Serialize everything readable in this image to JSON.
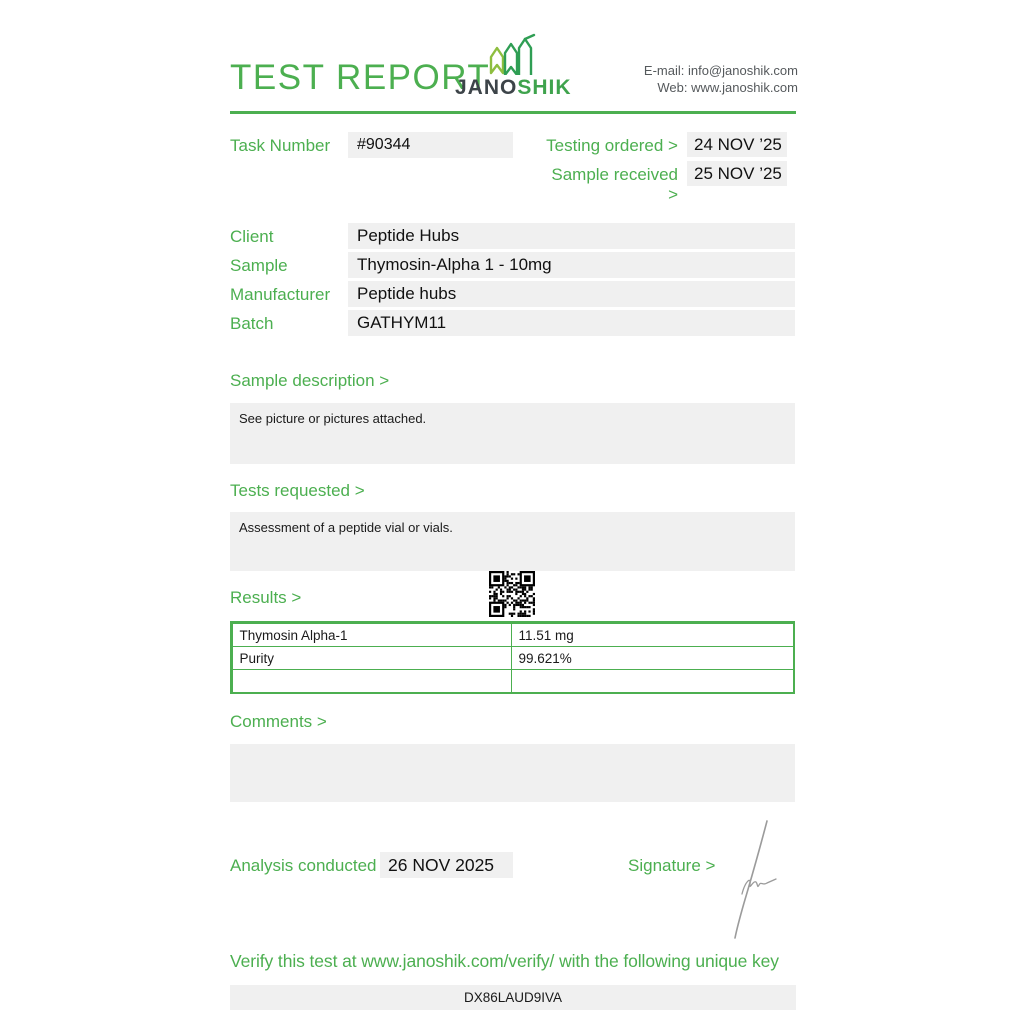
{
  "header": {
    "title": "TEST REPORT",
    "logo_jano": "JANO",
    "logo_shik": "SHIK",
    "email_line": "E-mail: info@janoshik.com",
    "web_line": "Web: www.janoshik.com"
  },
  "meta": {
    "task_number_label": "Task Number",
    "task_number": "#90344",
    "testing_ordered_label": "Testing ordered  >",
    "testing_ordered_date": "24 NOV ’25",
    "sample_received_label": "Sample received >",
    "sample_received_date": "25 NOV ’25"
  },
  "info_rows": [
    {
      "label": "Client",
      "value": "Peptide Hubs"
    },
    {
      "label": "Sample",
      "value": "Thymosin-Alpha 1 - 10mg"
    },
    {
      "label": "Manufacturer",
      "value": "Peptide hubs"
    },
    {
      "label": "Batch",
      "value": "GATHYM11"
    }
  ],
  "sample_description": {
    "heading": "Sample description >",
    "body": "See picture or pictures attached."
  },
  "tests_requested": {
    "heading": "Tests requested >",
    "body": "Assessment of a peptide vial or vials."
  },
  "results": {
    "heading": "Results >",
    "rows": [
      {
        "name": "Thymosin Alpha-1",
        "value": "11.51 mg"
      },
      {
        "name": "Purity",
        "value": "99.621%"
      },
      {
        "name": "",
        "value": ""
      }
    ]
  },
  "comments": {
    "heading": "Comments >",
    "body": ""
  },
  "footer": {
    "analysis_label": "Analysis conducted >",
    "analysis_date": "26 NOV 2025",
    "signature_label": "Signature >",
    "verify_text": "Verify this test at www.janoshik.com/verify/ with the following unique key",
    "unique_key": "DX86LAUD9IVA"
  },
  "colors": {
    "accent_green": "#4CAF50",
    "logo_dark": "#3d4449",
    "logo_green": "#3fa34d",
    "box_gray": "#f0f0f0",
    "text_dark": "#1a1a1a",
    "contact_gray": "#55595c"
  }
}
